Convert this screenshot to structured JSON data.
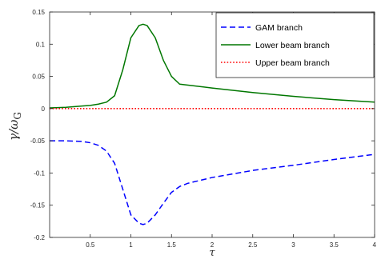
{
  "chart_data": {
    "type": "line",
    "xlabel": "τ",
    "ylabel_main": "γ/ω",
    "ylabel_sub": "G",
    "xlim": [
      0,
      4
    ],
    "ylim": [
      -0.2,
      0.15
    ],
    "xticks": [
      0.5,
      1,
      1.5,
      2,
      2.5,
      3,
      3.5,
      4
    ],
    "xtick_labels": [
      "0.5",
      "1",
      "1.5",
      "2",
      "2.5",
      "3",
      "3.5",
      "4"
    ],
    "yticks": [
      0.15,
      0.1,
      0.05,
      0,
      -0.05,
      -0.1,
      -0.15,
      -0.2
    ],
    "ytick_labels": [
      "0.15",
      "0.1",
      "0.05",
      "0",
      "-0.05",
      "-0.1",
      "-0.15",
      "-0.2"
    ],
    "grid": false,
    "legend_position": "top-right",
    "series": [
      {
        "name": "GAM branch",
        "color": "#0000ff",
        "style": "dashed",
        "x": [
          0.0,
          0.2,
          0.4,
          0.5,
          0.6,
          0.7,
          0.8,
          0.9,
          1.0,
          1.1,
          1.15,
          1.2,
          1.3,
          1.4,
          1.5,
          1.6,
          1.7,
          2.0,
          2.5,
          3.0,
          3.5,
          4.0
        ],
        "y": [
          -0.05,
          -0.05,
          -0.051,
          -0.053,
          -0.057,
          -0.066,
          -0.085,
          -0.125,
          -0.165,
          -0.178,
          -0.18,
          -0.178,
          -0.165,
          -0.147,
          -0.13,
          -0.121,
          -0.116,
          -0.107,
          -0.096,
          -0.088,
          -0.079,
          -0.071
        ]
      },
      {
        "name": "Lower beam branch",
        "color": "#007700",
        "style": "solid",
        "x": [
          0.0,
          0.2,
          0.4,
          0.5,
          0.6,
          0.7,
          0.8,
          0.9,
          1.0,
          1.1,
          1.15,
          1.2,
          1.3,
          1.4,
          1.5,
          1.6,
          2.0,
          2.5,
          3.0,
          3.5,
          4.0
        ],
        "y": [
          0.001,
          0.002,
          0.004,
          0.005,
          0.007,
          0.01,
          0.02,
          0.06,
          0.11,
          0.129,
          0.131,
          0.129,
          0.11,
          0.075,
          0.05,
          0.038,
          0.032,
          0.025,
          0.019,
          0.014,
          0.01
        ]
      },
      {
        "name": "Upper beam branch",
        "color": "#ff0000",
        "style": "dotted",
        "x": [
          0.0,
          1.0,
          2.0,
          3.0,
          4.0
        ],
        "y": [
          0.0,
          0.0,
          0.0,
          0.0,
          0.0
        ]
      }
    ]
  }
}
